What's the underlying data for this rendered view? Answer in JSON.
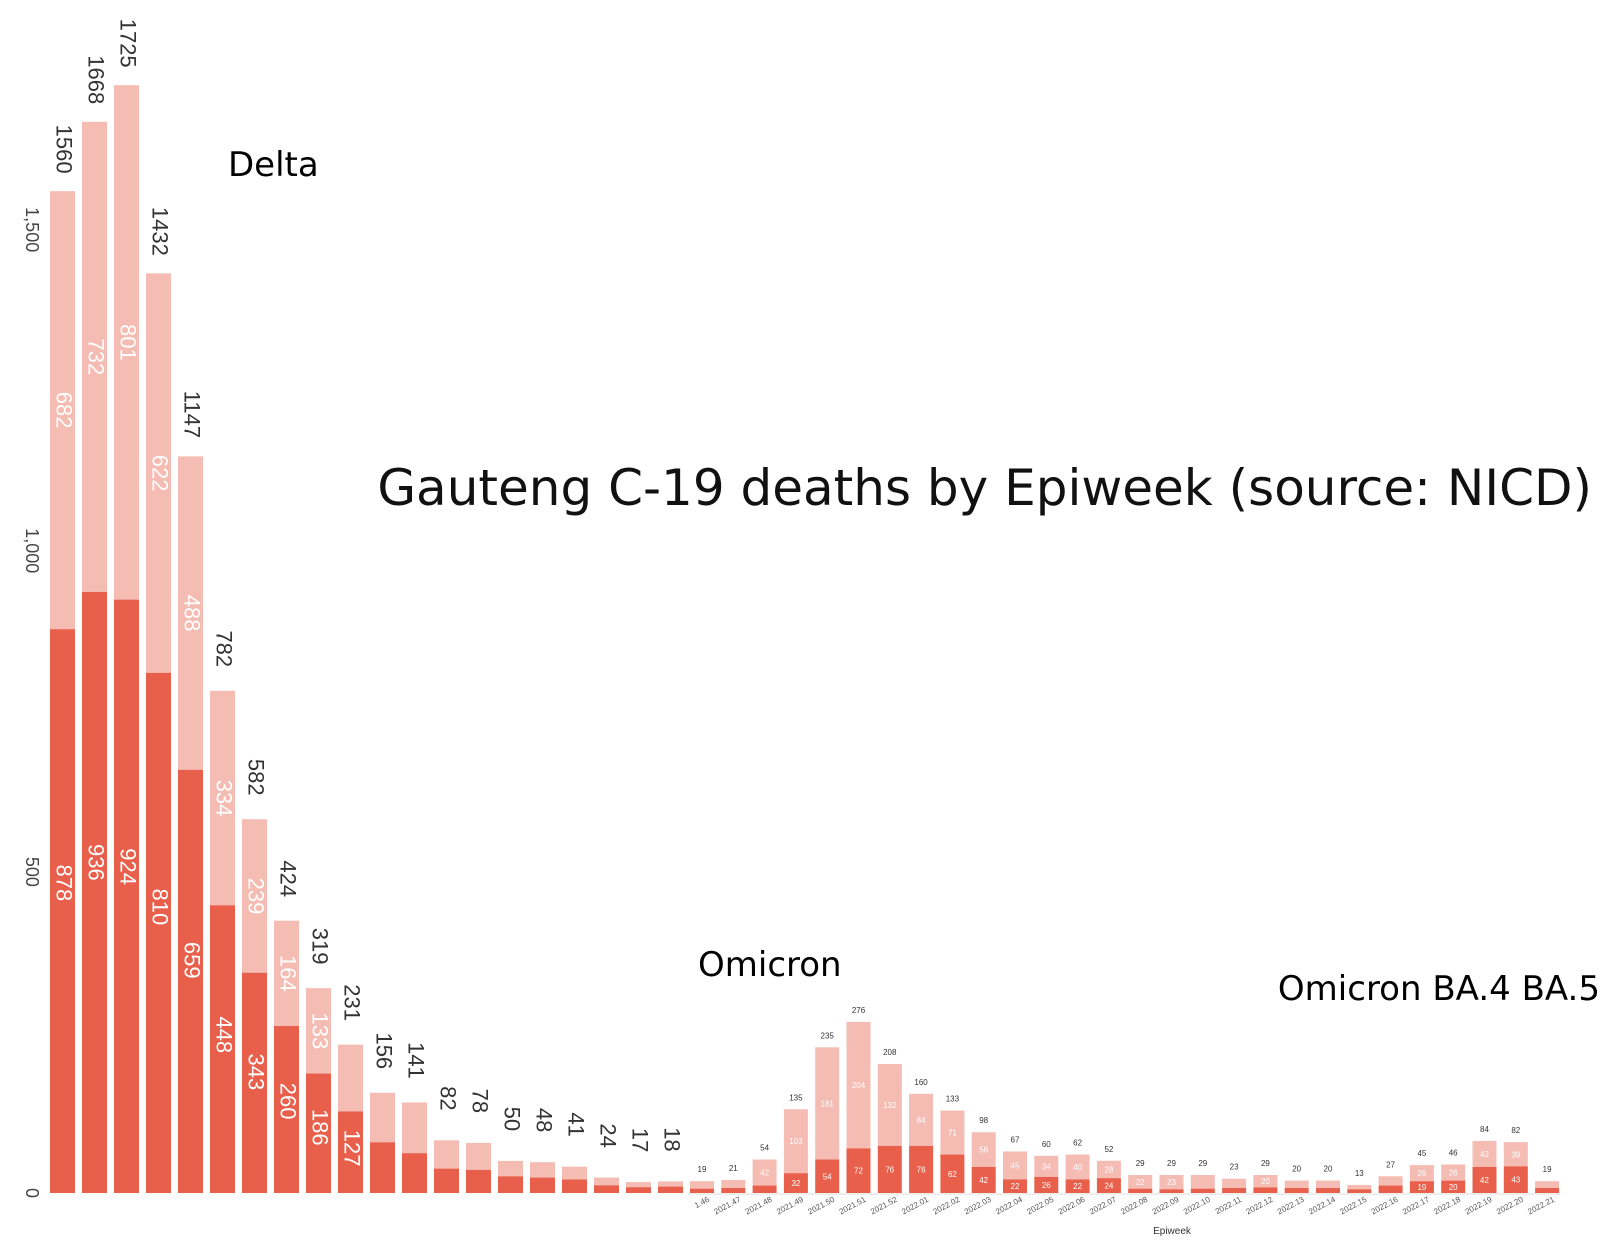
{
  "title": "Gauteng C-19 deaths by Epiweek (source: NICD)",
  "wave_labels": {
    "delta": "Delta",
    "omicron": "Omicron",
    "omicron_ba45": "Omicron BA.4 BA.5"
  },
  "colors": {
    "dark": "#e8604c",
    "light": "#f5bcb4",
    "axis": "#dddddd"
  },
  "chart_data": [
    {
      "type": "bar",
      "stacked": true,
      "name": "delta-panel",
      "ylim": [
        0,
        1725
      ],
      "yticks": [
        0,
        500,
        1000,
        1500
      ],
      "ytick_labels": [
        "0",
        "500",
        "1,000",
        "1,500"
      ],
      "x_tick_labels_visible": false,
      "totals": [
        1560,
        1668,
        1725,
        1432,
        1147,
        782,
        582,
        424,
        319,
        231,
        156,
        141,
        82,
        78,
        50,
        48,
        41,
        24,
        17,
        18
      ],
      "series": [
        {
          "values": [
            878,
            936,
            924,
            810,
            659,
            448,
            343,
            260,
            186,
            127,
            79,
            62,
            38,
            36,
            26,
            24,
            21,
            12,
            9,
            10
          ]
        },
        {
          "values": [
            682,
            732,
            801,
            622,
            488,
            334,
            239,
            164,
            133,
            104,
            77,
            79,
            44,
            42,
            24,
            24,
            20,
            12,
            8,
            8
          ]
        }
      ],
      "labels_dark": [
        "878",
        "936",
        "924",
        "810",
        "659",
        "448",
        "343",
        "260",
        "186",
        "127",
        "",
        "",
        "",
        "",
        "",
        "",
        "",
        "",
        "",
        ""
      ],
      "labels_light": [
        "682",
        "732",
        "801",
        "622",
        "488",
        "334",
        "239",
        "164",
        "133",
        "",
        "",
        "",
        "",
        "",
        "",
        "",
        "",
        "",
        "",
        ""
      ]
    },
    {
      "type": "bar",
      "stacked": true,
      "name": "omicron-panel",
      "xlabel": "Epiweek",
      "ylim": [
        0,
        276
      ],
      "categories": [
        "1.46",
        "2021.47",
        "2021.48",
        "2021.49",
        "2021.50",
        "2021.51",
        "2021.52",
        "2022.01",
        "2022.02",
        "2022.03",
        "2022.04",
        "2022.05",
        "2022.06",
        "2022.07",
        "2022.08",
        "2022.09",
        "2022.10",
        "2022.11",
        "2022.12",
        "2022.13",
        "2022.14",
        "2022.15",
        "2022.16",
        "2022.17",
        "2022.18",
        "2022.19",
        "2022.20",
        "2022.21"
      ],
      "totals": [
        19,
        21,
        54,
        135,
        235,
        276,
        208,
        160,
        133,
        98,
        67,
        60,
        62,
        52,
        29,
        29,
        29,
        23,
        29,
        20,
        20,
        13,
        27,
        45,
        46,
        84,
        82,
        19
      ],
      "series": [
        {
          "values": [
            7,
            8,
            12,
            32,
            54,
            72,
            76,
            76,
            62,
            42,
            22,
            26,
            22,
            24,
            7,
            6,
            7,
            8,
            9,
            8,
            8,
            6,
            12,
            19,
            20,
            42,
            43,
            8
          ]
        },
        {
          "values": [
            12,
            13,
            42,
            103,
            181,
            204,
            132,
            84,
            71,
            56,
            45,
            34,
            40,
            28,
            22,
            23,
            22,
            15,
            20,
            12,
            12,
            7,
            15,
            26,
            26,
            42,
            39,
            11
          ]
        }
      ],
      "labels_dark": [
        "",
        "",
        "",
        "32",
        "54",
        "72",
        "76",
        "76",
        "62",
        "42",
        "22",
        "26",
        "22",
        "24",
        "",
        "",
        "",
        "",
        "",
        "",
        "",
        "",
        "",
        "19",
        "20",
        "42",
        "43",
        ""
      ],
      "labels_light": [
        "",
        "",
        "42",
        "103",
        "181",
        "204",
        "132",
        "84",
        "71",
        "56",
        "45",
        "34",
        "40",
        "28",
        "22",
        "23",
        "",
        "",
        "20",
        "",
        "",
        "",
        "",
        "26",
        "26",
        "42",
        "39",
        ""
      ]
    }
  ]
}
